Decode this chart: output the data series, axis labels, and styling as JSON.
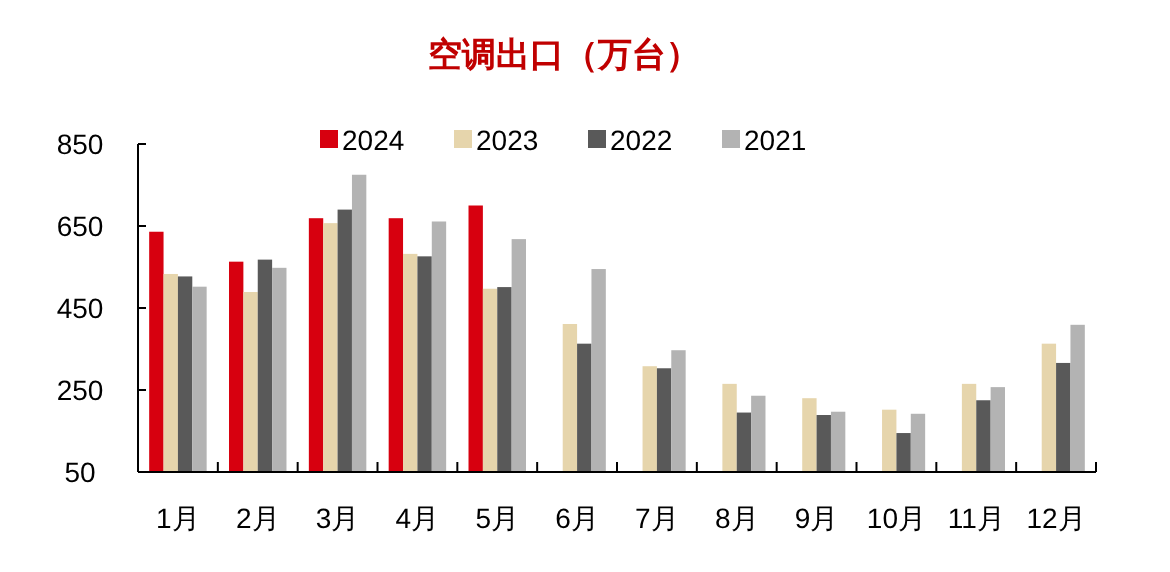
{
  "chart_data": {
    "type": "bar",
    "title": "空调出口（万台）",
    "categories": [
      "1月",
      "2月",
      "3月",
      "4月",
      "5月",
      "6月",
      "7月",
      "8月",
      "9月",
      "10月",
      "11月",
      "12月"
    ],
    "series": [
      {
        "name": "2024",
        "color": "#d7000f",
        "values": [
          636,
          563,
          669,
          669,
          700,
          null,
          null,
          null,
          null,
          null,
          null,
          null
        ]
      },
      {
        "name": "2023",
        "color": "#e6d5ac",
        "values": [
          533,
          489,
          657,
          582,
          497,
          411,
          308,
          265,
          230,
          202,
          265,
          363
        ]
      },
      {
        "name": "2022",
        "color": "#595959",
        "values": [
          527,
          568,
          690,
          576,
          501,
          363,
          303,
          195,
          189,
          145,
          225,
          316
        ]
      },
      {
        "name": "2021",
        "color": "#b3b3b3",
        "values": [
          502,
          548,
          775,
          661,
          618,
          545,
          347,
          236,
          197,
          192,
          257,
          409
        ]
      }
    ],
    "ylim": [
      50,
      850
    ],
    "yticks": [
      50,
      250,
      450,
      650,
      850
    ],
    "grid": false,
    "legend": "top"
  }
}
